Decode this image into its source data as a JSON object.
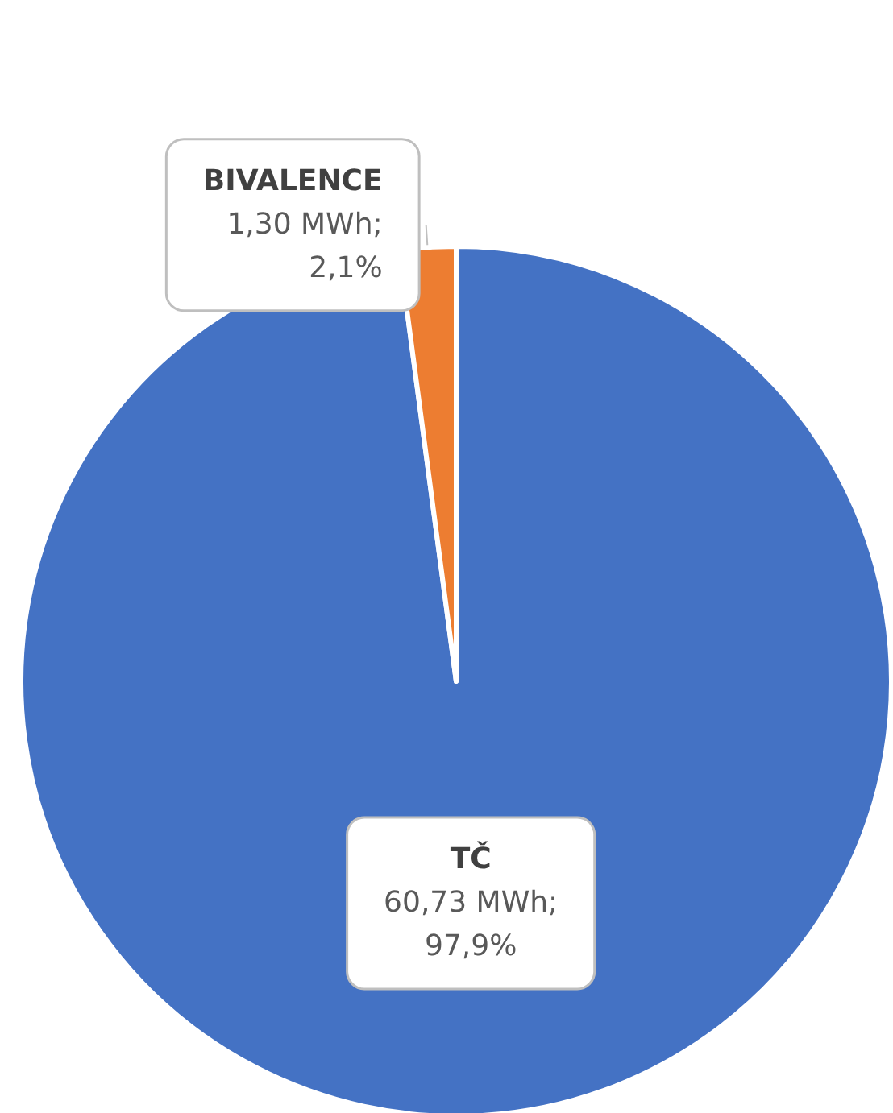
{
  "chart_data": {
    "type": "pie",
    "categories": [
      "TČ",
      "BIVALENCE"
    ],
    "values": [
      60.73,
      1.3
    ],
    "colors": [
      "#4472c4",
      "#ed7d31"
    ],
    "value_labels": [
      "60,73 MWh;\n97,9%",
      "1,30 MWh;\n2,1%"
    ],
    "legend": false
  }
}
